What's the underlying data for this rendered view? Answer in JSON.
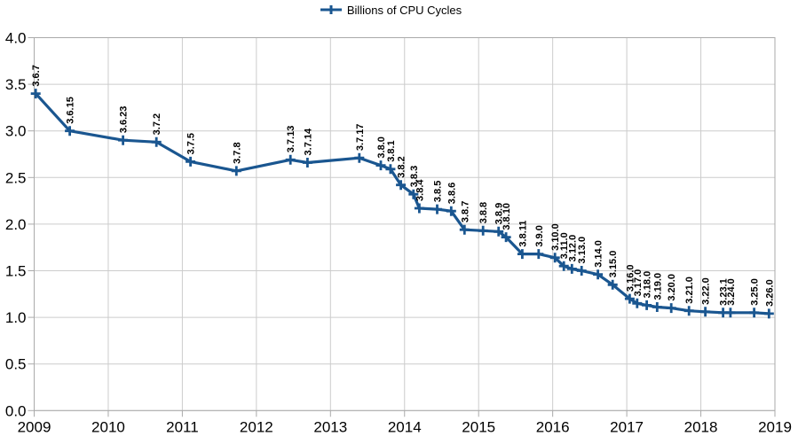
{
  "chart_data": {
    "type": "line",
    "title": "",
    "legend_position": "top",
    "grid": true,
    "xlabel": "",
    "ylabel": "",
    "xlim": [
      2009,
      2019
    ],
    "ylim": [
      0.0,
      4.0
    ],
    "x_tick_values": [
      2009,
      2010,
      2011,
      2012,
      2013,
      2014,
      2015,
      2016,
      2017,
      2018,
      2019
    ],
    "x_tick_labels": [
      "2009",
      "2010",
      "2011",
      "2012",
      "2013",
      "2014",
      "2015",
      "2016",
      "2017",
      "2018",
      "2019"
    ],
    "y_tick_values": [
      0.0,
      0.5,
      1.0,
      1.5,
      2.0,
      2.5,
      3.0,
      3.5,
      4.0
    ],
    "y_tick_labels": [
      "0.0",
      "0.5",
      "1.0",
      "1.5",
      "2.0",
      "2.5",
      "3.0",
      "3.5",
      "4.0"
    ],
    "colors": {
      "line": "#1a5690",
      "grid": "#cccccc",
      "frame": "#aaaaaa",
      "text": "#000000",
      "background": "#ffffff"
    },
    "series": [
      {
        "name": "Billions of CPU Cycles",
        "points": [
          {
            "label": "3.6.7",
            "x": 2009.02,
            "y": 3.4
          },
          {
            "label": "3.6.15",
            "x": 2009.48,
            "y": 3.0
          },
          {
            "label": "3.6.23",
            "x": 2010.2,
            "y": 2.9
          },
          {
            "label": "3.7.2",
            "x": 2010.65,
            "y": 2.88
          },
          {
            "label": "3.7.5",
            "x": 2011.11,
            "y": 2.67
          },
          {
            "label": "3.7.8",
            "x": 2011.73,
            "y": 2.57
          },
          {
            "label": "3.7.13",
            "x": 2012.46,
            "y": 2.69
          },
          {
            "label": "3.7.14",
            "x": 2012.69,
            "y": 2.66
          },
          {
            "label": "3.7.17",
            "x": 2013.39,
            "y": 2.71
          },
          {
            "label": "3.8.0",
            "x": 2013.68,
            "y": 2.63
          },
          {
            "label": "3.8.1",
            "x": 2013.81,
            "y": 2.59
          },
          {
            "label": "3.8.2",
            "x": 2013.95,
            "y": 2.42
          },
          {
            "label": "3.8.3",
            "x": 2014.12,
            "y": 2.32
          },
          {
            "label": "3.8.4",
            "x": 2014.2,
            "y": 2.17
          },
          {
            "label": "3.8.5",
            "x": 2014.44,
            "y": 2.16
          },
          {
            "label": "3.8.6",
            "x": 2014.63,
            "y": 2.14
          },
          {
            "label": "3.8.7",
            "x": 2014.81,
            "y": 1.94
          },
          {
            "label": "3.8.8",
            "x": 2015.06,
            "y": 1.93
          },
          {
            "label": "3.8.9",
            "x": 2015.27,
            "y": 1.92
          },
          {
            "label": "3.8.10",
            "x": 2015.37,
            "y": 1.86
          },
          {
            "label": "3.8.11",
            "x": 2015.59,
            "y": 1.68
          },
          {
            "label": "3.9.0",
            "x": 2015.81,
            "y": 1.68
          },
          {
            "label": "3.10.0",
            "x": 2016.03,
            "y": 1.64
          },
          {
            "label": "3.11.0",
            "x": 2016.15,
            "y": 1.55
          },
          {
            "label": "3.12.0",
            "x": 2016.26,
            "y": 1.52
          },
          {
            "label": "3.13.0",
            "x": 2016.39,
            "y": 1.5
          },
          {
            "label": "3.14.0",
            "x": 2016.61,
            "y": 1.46
          },
          {
            "label": "3.15.0",
            "x": 2016.81,
            "y": 1.35
          },
          {
            "label": "3.16.0",
            "x": 2017.04,
            "y": 1.2
          },
          {
            "label": "3.17.0",
            "x": 2017.14,
            "y": 1.15
          },
          {
            "label": "3.18.0",
            "x": 2017.27,
            "y": 1.13
          },
          {
            "label": "3.19.0",
            "x": 2017.41,
            "y": 1.11
          },
          {
            "label": "3.20.0",
            "x": 2017.6,
            "y": 1.1
          },
          {
            "label": "3.21.0",
            "x": 2017.84,
            "y": 1.07
          },
          {
            "label": "3.22.0",
            "x": 2018.06,
            "y": 1.06
          },
          {
            "label": "3.23.1",
            "x": 2018.3,
            "y": 1.05
          },
          {
            "label": "3.24.0",
            "x": 2018.4,
            "y": 1.05
          },
          {
            "label": "3.25.0",
            "x": 2018.72,
            "y": 1.05
          },
          {
            "label": "3.26.0",
            "x": 2018.92,
            "y": 1.04
          }
        ]
      }
    ]
  }
}
